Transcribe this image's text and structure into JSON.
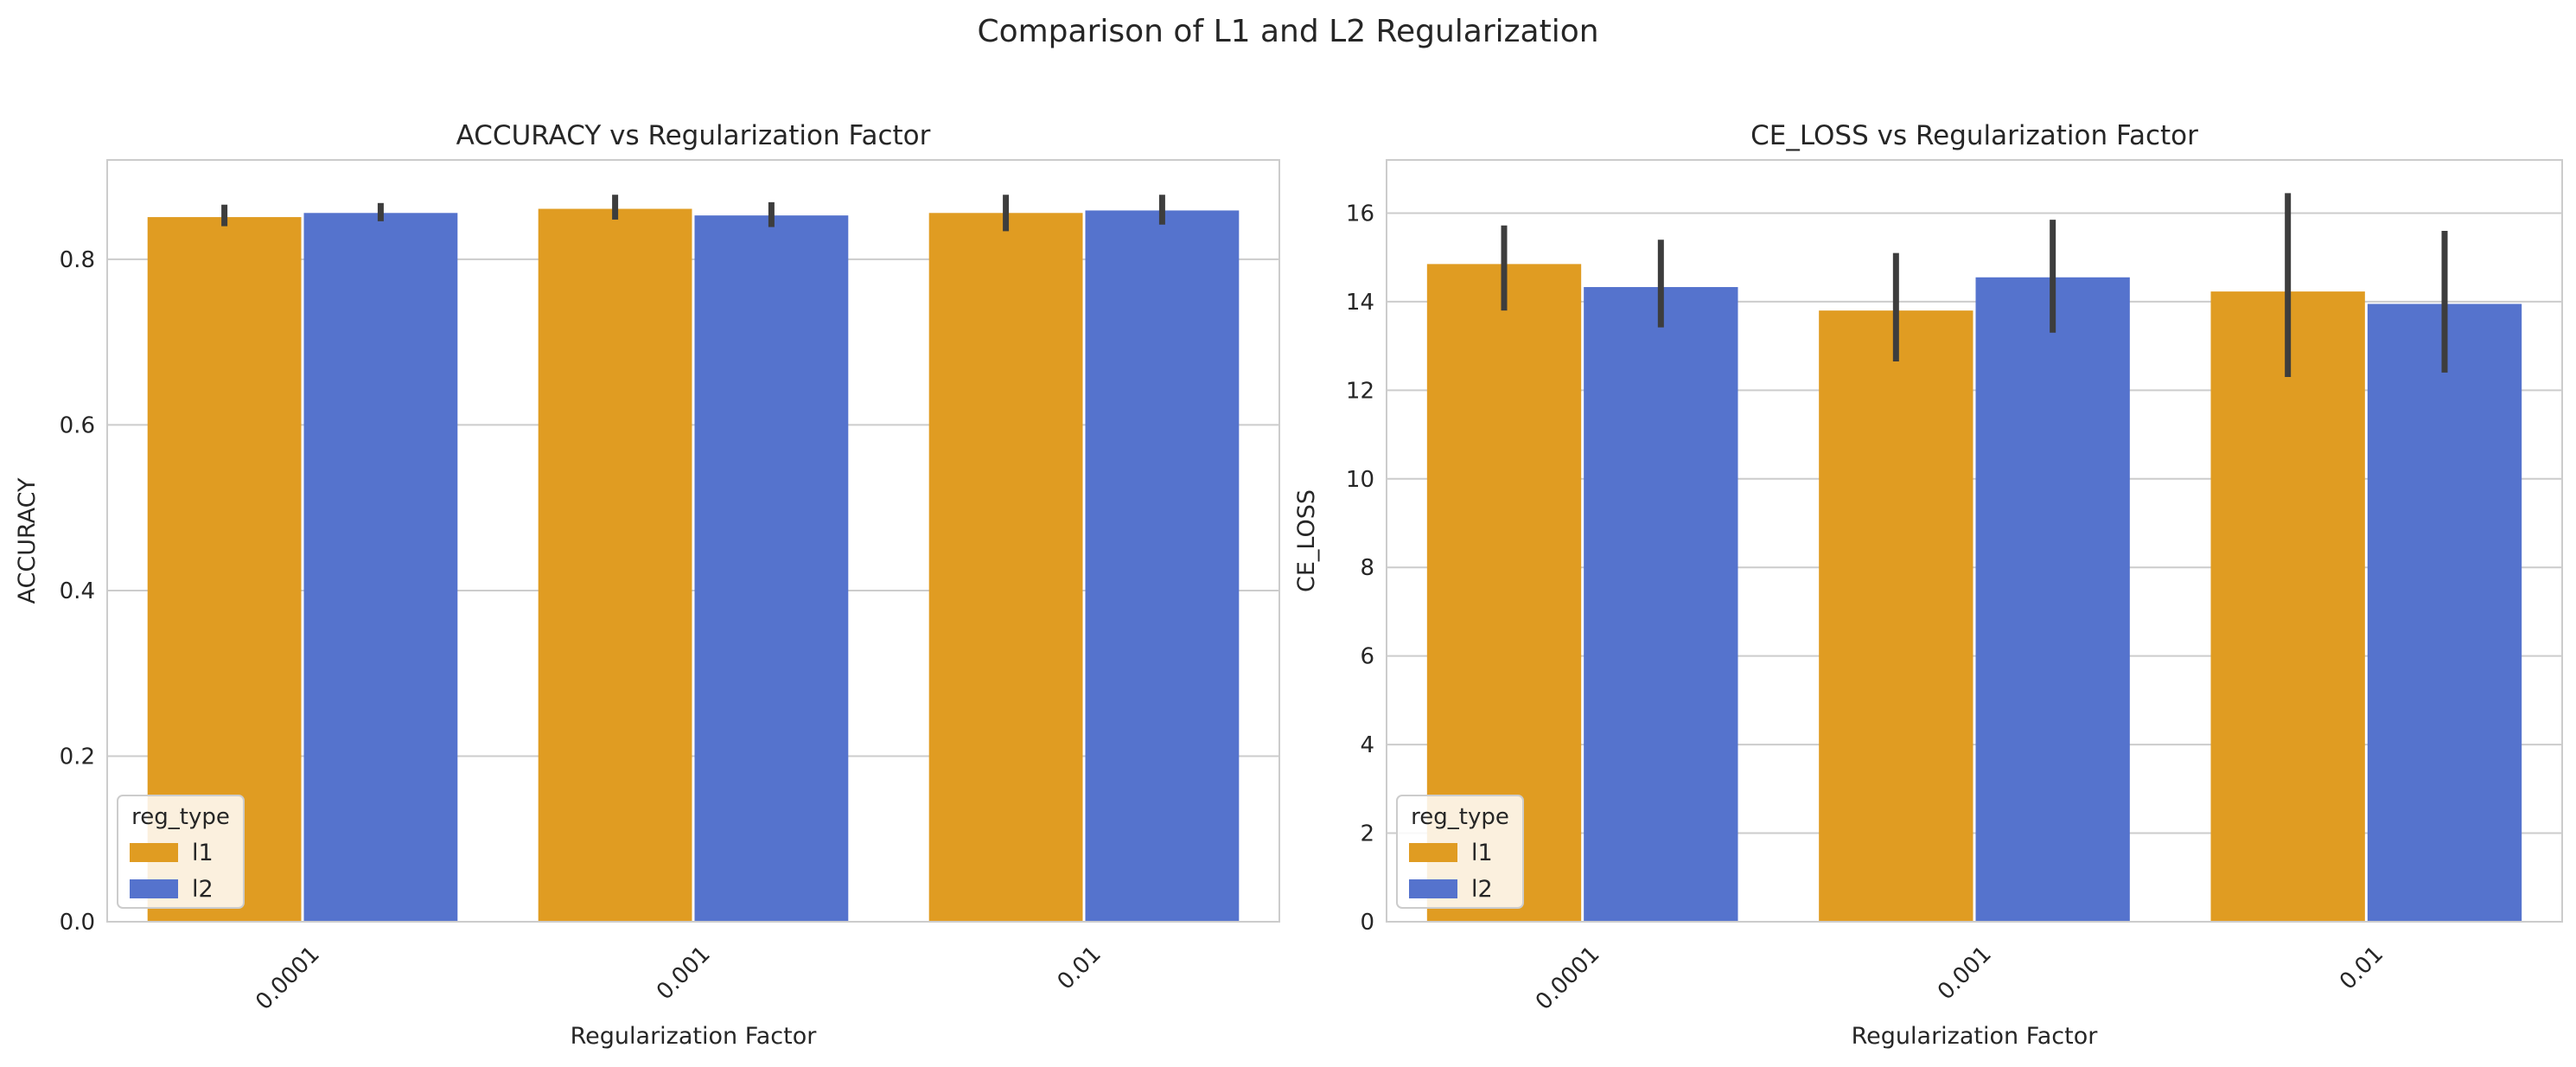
{
  "figure": {
    "suptitle": "Comparison of L1 and L2 Regularization"
  },
  "colors": {
    "l1": "#e09c22",
    "l2": "#5573cd",
    "error_bar": "#3d3d3d",
    "grid": "#cccccc",
    "frame": "#cccccc"
  },
  "chart_data": [
    {
      "type": "bar",
      "title": "ACCURACY vs Regularization Factor",
      "xlabel": "Regularization Factor",
      "ylabel": "ACCURACY",
      "categories": [
        "0.0001",
        "0.001",
        "0.01"
      ],
      "ylim": [
        0,
        0.92
      ],
      "yticks": [
        0.0,
        0.2,
        0.4,
        0.6,
        0.8
      ],
      "ytick_labels": [
        "0.0",
        "0.2",
        "0.4",
        "0.6",
        "0.8"
      ],
      "grid": "y",
      "legend": {
        "title": "reg_type",
        "position": "lower-left"
      },
      "series": [
        {
          "name": "l1",
          "values": [
            0.851,
            0.861,
            0.856
          ],
          "ci_low": [
            0.84,
            0.848,
            0.834
          ],
          "ci_high": [
            0.866,
            0.878,
            0.878
          ]
        },
        {
          "name": "l2",
          "values": [
            0.856,
            0.853,
            0.859
          ],
          "ci_low": [
            0.846,
            0.839,
            0.842
          ],
          "ci_high": [
            0.868,
            0.869,
            0.878
          ]
        }
      ]
    },
    {
      "type": "bar",
      "title": "CE_LOSS vs Regularization Factor",
      "xlabel": "Regularization Factor",
      "ylabel": "CE_LOSS",
      "categories": [
        "0.0001",
        "0.001",
        "0.01"
      ],
      "ylim": [
        0,
        17.2
      ],
      "yticks": [
        0,
        2,
        4,
        6,
        8,
        10,
        12,
        14,
        16
      ],
      "ytick_labels": [
        "0",
        "2",
        "4",
        "6",
        "8",
        "10",
        "12",
        "14",
        "16"
      ],
      "grid": "y",
      "legend": {
        "title": "reg_type",
        "position": "lower-left"
      },
      "series": [
        {
          "name": "l1",
          "values": [
            14.85,
            13.8,
            14.23
          ],
          "ci_low": [
            13.8,
            12.65,
            12.3
          ],
          "ci_high": [
            15.72,
            15.1,
            16.45
          ]
        },
        {
          "name": "l2",
          "values": [
            14.33,
            14.55,
            13.95
          ],
          "ci_low": [
            13.42,
            13.3,
            12.4
          ],
          "ci_high": [
            15.4,
            15.85,
            15.6
          ]
        }
      ]
    }
  ]
}
